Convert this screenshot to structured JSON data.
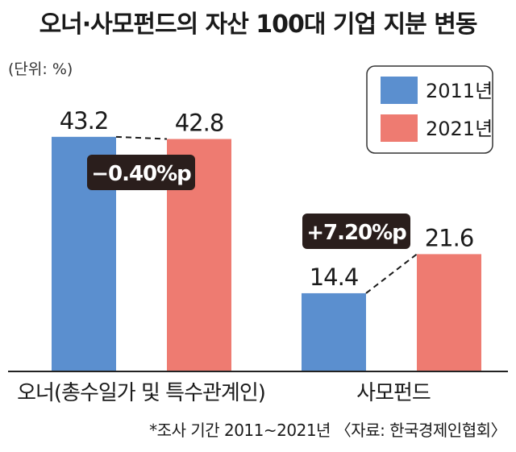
{
  "chart_data": {
    "type": "bar",
    "title": "오너·사모펀드의 자산 100대 기업 지분 변동",
    "unit": "(단위: %)",
    "categories": [
      "오너(총수일가 및 특수관계인)",
      "사모펀드"
    ],
    "series": [
      {
        "name": "2011년",
        "values": [
          43.2,
          14.4
        ],
        "color": "#5b8fcf"
      },
      {
        "name": "2021년",
        "values": [
          42.8,
          21.6
        ],
        "color": "#ee7b71"
      }
    ],
    "value_labels": [
      [
        "43.2",
        "14.4"
      ],
      [
        "42.8",
        "21.6"
      ]
    ],
    "changes": [
      "−0.40%p",
      "+7.20%p"
    ],
    "ylim": [
      0,
      50
    ],
    "legend_position": "top-right",
    "grid": false,
    "footnote": "*조사 기간 2011~2021년 〈자료: 한국경제인협회〉"
  }
}
